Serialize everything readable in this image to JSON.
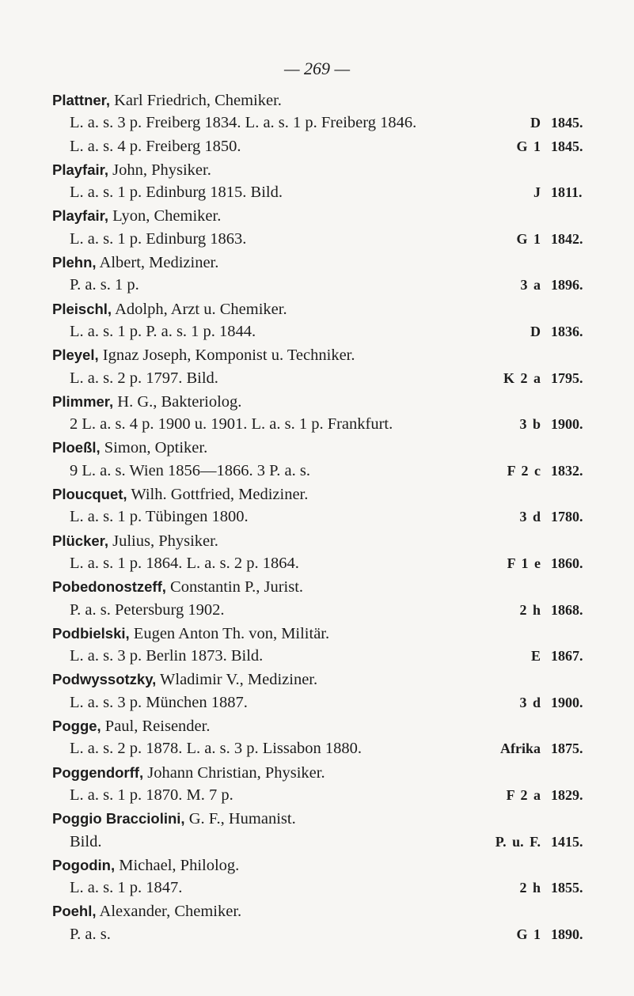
{
  "page_number": "— 269 —",
  "entries": [
    {
      "name": "Plattner,",
      "desc": "Karl Friedrich, Chemiker.",
      "lines": [
        {
          "text": "L. a. s. 3 p. Freiberg 1834. L. a. s. 1 p. Freiberg 1846.",
          "sig": "D",
          "year": "1845."
        },
        {
          "text": "L. a. s. 4 p. Freiberg 1850.",
          "sig": "G 1",
          "year": "1845."
        }
      ]
    },
    {
      "name": "Playfair,",
      "desc": "John, Physiker.",
      "lines": [
        {
          "text": "L. a. s. 1 p. Edinburg 1815. Bild.",
          "sig": "J",
          "year": "1811."
        }
      ]
    },
    {
      "name": "Playfair,",
      "desc": "Lyon, Chemiker.",
      "lines": [
        {
          "text": "L. a. s. 1 p. Edinburg 1863.",
          "sig": "G 1",
          "year": "1842."
        }
      ]
    },
    {
      "name": "Plehn,",
      "desc": "Albert, Mediziner.",
      "lines": [
        {
          "text": "P. a. s. 1 p.",
          "sig": "3 a",
          "year": "1896."
        }
      ]
    },
    {
      "name": "Pleischl,",
      "desc": "Adolph, Arzt u. Chemiker.",
      "lines": [
        {
          "text": "L. a. s. 1 p. P. a. s. 1 p. 1844.",
          "sig": "D",
          "year": "1836."
        }
      ]
    },
    {
      "name": "Pleyel,",
      "desc": "Ignaz Joseph, Komponist u. Techniker.",
      "lines": [
        {
          "text": "L. a. s. 2 p. 1797. Bild.",
          "sig": "K 2 a",
          "year": "1795."
        }
      ]
    },
    {
      "name": "Plimmer,",
      "desc": "H. G., Bakteriolog.",
      "lines": [
        {
          "text": "2 L. a. s. 4 p. 1900 u. 1901. L. a. s. 1 p. Frankfurt.",
          "sig": "3 b",
          "year": "1900."
        }
      ]
    },
    {
      "name": "Ploeßl,",
      "desc": "Simon, Optiker.",
      "lines": [
        {
          "text": "9 L. a. s. Wien 1856—1866. 3 P. a. s.",
          "sig": "F 2 c",
          "year": "1832."
        }
      ]
    },
    {
      "name": "Ploucquet,",
      "desc": "Wilh. Gottfried, Mediziner.",
      "lines": [
        {
          "text": "L. a. s. 1 p. Tübingen 1800.",
          "sig": "3 d",
          "year": "1780."
        }
      ]
    },
    {
      "name": "Plücker,",
      "desc": "Julius, Physiker.",
      "lines": [
        {
          "text": "L. a. s. 1 p. 1864. L. a. s. 2 p. 1864.",
          "sig": "F 1 e",
          "year": "1860."
        }
      ]
    },
    {
      "name": "Pobedonostzeff,",
      "desc": "Constantin P., Jurist.",
      "lines": [
        {
          "text": "P. a. s. Petersburg 1902.",
          "sig": "2 h",
          "year": "1868."
        }
      ]
    },
    {
      "name": "Podbielski,",
      "desc": "Eugen Anton Th. von, Militär.",
      "lines": [
        {
          "text": "L. a. s. 3 p. Berlin 1873. Bild.",
          "sig": "E",
          "year": "1867."
        }
      ]
    },
    {
      "name": "Podwyssotzky,",
      "desc": "Wladimir V., Mediziner.",
      "lines": [
        {
          "text": "L. a. s. 3 p. München 1887.",
          "sig": "3 d",
          "year": "1900."
        }
      ]
    },
    {
      "name": "Pogge,",
      "desc": "Paul, Reisender.",
      "lines": [
        {
          "text": "L. a. s. 2 p. 1878. L. a. s. 3 p. Lissabon 1880.",
          "sig": "Afrika",
          "year": "1875."
        }
      ]
    },
    {
      "name": "Poggendorff,",
      "desc": "Johann Christian, Physiker.",
      "lines": [
        {
          "text": "L. a. s. 1 p. 1870. M. 7 p.",
          "sig": "F 2 a",
          "year": "1829."
        }
      ]
    },
    {
      "name": "Poggio Bracciolini,",
      "desc": "G. F., Humanist.",
      "lines": [
        {
          "text": "Bild.",
          "sig": "P. u. F.",
          "year": "1415."
        }
      ]
    },
    {
      "name": "Pogodin,",
      "desc": "Michael, Philolog.",
      "lines": [
        {
          "text": "L. a. s. 1 p. 1847.",
          "sig": "2 h",
          "year": "1855."
        }
      ]
    },
    {
      "name": "Poehl,",
      "desc": "Alexander, Chemiker.",
      "lines": [
        {
          "text": "P. a. s.",
          "sig": "G 1",
          "year": "1890."
        }
      ]
    }
  ]
}
